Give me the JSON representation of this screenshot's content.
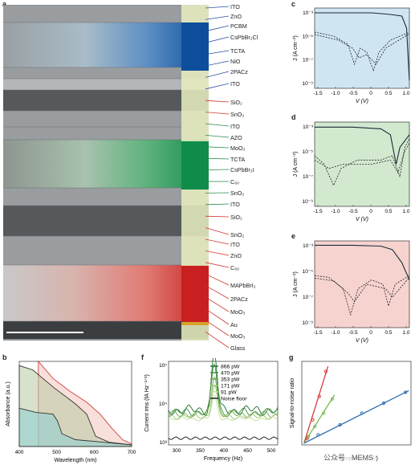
{
  "panels": {
    "a": "a",
    "b": "b",
    "c": "c",
    "d": "d",
    "e": "e",
    "f": "f",
    "g": "g"
  },
  "layers": [
    {
      "label": "ITO",
      "y": 8,
      "color": "#2a4fa0"
    },
    {
      "label": "ZnO",
      "y": 20,
      "color": "#2a4fa0"
    },
    {
      "label": "PCBM",
      "y": 32,
      "color": "#2a4fa0"
    },
    {
      "label": "CsPbBr₂Cl",
      "y": 46,
      "color": "#2a4fa0"
    },
    {
      "label": "TCTA",
      "y": 63,
      "color": "#2a4fa0"
    },
    {
      "label": "NiO",
      "y": 76,
      "color": "#2a4fa0"
    },
    {
      "label": "2PACz",
      "y": 89,
      "color": "#2a4fa0"
    },
    {
      "label": "ITO",
      "y": 104,
      "color": "#2a4fa0"
    },
    {
      "label": "SiO₂",
      "y": 127,
      "color": "#c33"
    },
    {
      "label": "SnO₂",
      "y": 142,
      "color": "#c33"
    },
    {
      "label": "ITO",
      "y": 157,
      "color": "#2a8a4a"
    },
    {
      "label": "AZO",
      "y": 171,
      "color": "#2a8a4a"
    },
    {
      "label": "MoO₃",
      "y": 184,
      "color": "#2a8a4a"
    },
    {
      "label": "TCTA",
      "y": 198,
      "color": "#2a8a4a"
    },
    {
      "label": "CsPbBr₃I",
      "y": 211,
      "color": "#2a8a4a"
    },
    {
      "label": "C₆₀",
      "y": 226,
      "color": "#2a8a4a"
    },
    {
      "label": "SnO₂",
      "y": 240,
      "color": "#2a8a4a"
    },
    {
      "label": "ITO",
      "y": 254,
      "color": "#2a8a4a"
    },
    {
      "label": "SiO₂",
      "y": 270,
      "color": "#c33"
    },
    {
      "label": "SnO₂",
      "y": 292,
      "color": "#c33"
    },
    {
      "label": "ITO",
      "y": 304,
      "color": "#c33"
    },
    {
      "label": "ZnO",
      "y": 318,
      "color": "#c33"
    },
    {
      "label": "C₆₀",
      "y": 333,
      "color": "#c33"
    },
    {
      "label": "MAPbBrI₂",
      "y": 355,
      "color": "#c33"
    },
    {
      "label": "2PACz",
      "y": 372,
      "color": "#c33"
    },
    {
      "label": "MoO₃",
      "y": 388,
      "color": "#c33"
    },
    {
      "label": "Au",
      "y": 404,
      "color": "#c33"
    },
    {
      "label": "MoO₃",
      "y": 418,
      "color": "#c33"
    },
    {
      "label": "Glass",
      "y": 433,
      "color": "#c33"
    }
  ],
  "bands": [
    {
      "top": 6,
      "h": 22,
      "kind": "gray"
    },
    {
      "top": 28,
      "h": 56,
      "kind": "blue"
    },
    {
      "top": 84,
      "h": 14,
      "kind": "gray"
    },
    {
      "top": 98,
      "h": 14,
      "kind": "gray-light"
    },
    {
      "top": 112,
      "h": 26,
      "kind": "dark"
    },
    {
      "top": 138,
      "h": 20,
      "kind": "gray"
    },
    {
      "top": 158,
      "h": 16,
      "kind": "gray"
    },
    {
      "top": 174,
      "h": 60,
      "kind": "green"
    },
    {
      "top": 234,
      "h": 22,
      "kind": "gray"
    },
    {
      "top": 256,
      "h": 38,
      "kind": "dark"
    },
    {
      "top": 294,
      "h": 36,
      "kind": "gray"
    },
    {
      "top": 330,
      "h": 70,
      "kind": "red"
    },
    {
      "top": 400,
      "h": 22,
      "kind": "dark-base"
    }
  ],
  "jv_plots": {
    "ylabel": "J (A cm⁻²)",
    "xlabel": "V (V)",
    "xticks": [
      "-1.5",
      "-1.0",
      "-0.5",
      "0",
      "0.5",
      "1.0"
    ],
    "yticks": [
      "10⁻³",
      "10⁻⁵",
      "10⁻⁷",
      "10⁻⁹"
    ]
  },
  "absorbance": {
    "ylabel": "Absorbance (a.u.)",
    "xlabel": "Wavelength (nm)",
    "xticks": [
      "400",
      "500",
      "600",
      "700"
    ]
  },
  "noise": {
    "ylabel": "Current rms (fA Hz⁻¹ᐟ²)",
    "xlabel": "Frequency (Hz)",
    "xticks": [
      "300",
      "350",
      "400",
      "450",
      "500"
    ],
    "yticks": [
      "10⁵",
      "10⁴",
      "10³"
    ],
    "legend": [
      "866 pW",
      "470 pW",
      "353 pW",
      "171 pW",
      "91 pW",
      "Noise floor"
    ]
  },
  "snr": {
    "ylabel": "Signal-to-noise ratio",
    "xlabel": "Input power (nW)"
  },
  "watermark": "公众号 · MEMS",
  "chart_data": [
    {
      "type": "line",
      "title": "",
      "xlabel": "V (V)",
      "ylabel": "J (A cm⁻²)",
      "xlim": [
        -1.5,
        1.0
      ],
      "yscale": "log",
      "series": [
        {
          "values": [
            [
              -1.5,
              0.003
            ],
            [
              -1.0,
              0.003
            ],
            [
              -0.5,
              0.003
            ],
            [
              0,
              0.003
            ],
            [
              0.5,
              0.0025
            ],
            [
              0.8,
              0.002
            ],
            [
              1.0,
              0.0001
            ]
          ]
        },
        {
          "values": [
            [
              -1.5,
              1e-05
            ],
            [
              -1.0,
              5e-06
            ],
            [
              -0.5,
              1e-06
            ],
            [
              -0.2,
              1e-07
            ],
            [
              0,
              1e-06
            ],
            [
              0.2,
              1e-07
            ],
            [
              0.5,
              1e-06
            ],
            [
              1.0,
              1e-05
            ]
          ]
        }
      ]
    },
    {
      "type": "line",
      "xlabel": "V (V)",
      "ylabel": "J (A cm⁻²)",
      "xlim": [
        -1.5,
        1.0
      ],
      "yscale": "log",
      "series": [
        {
          "values": [
            [
              -1.5,
              0.003
            ],
            [
              -1.0,
              0.003
            ],
            [
              0,
              0.003
            ],
            [
              0.5,
              0.002
            ],
            [
              0.7,
              0.0001
            ],
            [
              1.0,
              0.001
            ]
          ]
        },
        {
          "values": [
            [
              -1.5,
              1e-05
            ],
            [
              -1.0,
              1e-07
            ],
            [
              -0.5,
              5e-06
            ],
            [
              0.5,
              5e-06
            ],
            [
              0.8,
              1e-07
            ],
            [
              1.0,
              0.0001
            ]
          ]
        }
      ]
    },
    {
      "type": "line",
      "xlabel": "V (V)",
      "ylabel": "J (A cm⁻²)",
      "xlim": [
        -1.5,
        1.0
      ],
      "yscale": "log",
      "series": [
        {
          "values": [
            [
              -1.5,
              0.003
            ],
            [
              -1.0,
              0.003
            ],
            [
              0,
              0.003
            ],
            [
              0.5,
              0.002
            ],
            [
              0.8,
              0.0003
            ],
            [
              1.0,
              0.0001
            ]
          ]
        },
        {
          "values": [
            [
              -1.5,
              1e-05
            ],
            [
              -1.0,
              5e-06
            ],
            [
              -0.5,
              1e-07
            ],
            [
              0,
              5e-06
            ],
            [
              0.5,
              1e-07
            ],
            [
              1.0,
              1e-05
            ]
          ]
        }
      ]
    },
    {
      "type": "area",
      "xlabel": "Wavelength (nm)",
      "ylabel": "Absorbance (a.u.)",
      "xlim": [
        400,
        700
      ],
      "series": [
        {
          "values": [
            [
              400,
              1.0
            ],
            [
              450,
              0.9
            ],
            [
              470,
              0.85
            ],
            [
              490,
              0.2
            ],
            [
              600,
              0.05
            ],
            [
              700,
              0.02
            ]
          ]
        },
        {
          "values": [
            [
              400,
              2.4
            ],
            [
              450,
              2.0
            ],
            [
              500,
              1.6
            ],
            [
              560,
              1.2
            ],
            [
              600,
              0.5
            ],
            [
              650,
              0.2
            ],
            [
              700,
              0.1
            ]
          ]
        },
        {
          "values": [
            [
              450,
              3.0
            ],
            [
              500,
              2.6
            ],
            [
              560,
              2.0
            ],
            [
              600,
              1.6
            ],
            [
              650,
              1.0
            ],
            [
              700,
              0.4
            ]
          ]
        }
      ]
    },
    {
      "type": "line",
      "xlabel": "Frequency (Hz)",
      "ylabel": "Current rms (fA Hz⁻¹ᐟ²)",
      "xlim": [
        275,
        500
      ],
      "yscale": "log",
      "series": [
        {
          "name": "866 pW",
          "values": [
            [
              275,
              2000
            ],
            [
              350,
              4000
            ],
            [
              375,
              40000
            ],
            [
              400,
              4000
            ],
            [
              500,
              2000
            ]
          ]
        },
        {
          "name": "470 pW",
          "values": [
            [
              275,
              1800
            ],
            [
              350,
              3000
            ],
            [
              375,
              20000
            ],
            [
              400,
              3000
            ],
            [
              500,
              1500
            ]
          ]
        },
        {
          "name": "353 pW",
          "values": [
            [
              275,
              1500
            ],
            [
              350,
              2500
            ],
            [
              375,
              12000
            ],
            [
              400,
              2500
            ],
            [
              500,
              1400
            ]
          ]
        },
        {
          "name": "171 pW",
          "values": [
            [
              275,
              1300
            ],
            [
              350,
              1800
            ],
            [
              375,
              6000
            ],
            [
              400,
              1800
            ],
            [
              500,
              1200
            ]
          ]
        },
        {
          "name": "91 pW",
          "values": [
            [
              275,
              1200
            ],
            [
              350,
              1400
            ],
            [
              375,
              3000
            ],
            [
              400,
              1400
            ],
            [
              500,
              1100
            ]
          ]
        },
        {
          "name": "Noise floor",
          "values": [
            [
              275,
              1000
            ],
            [
              500,
              1000
            ]
          ]
        }
      ]
    },
    {
      "type": "scatter",
      "xlabel": "Input power (nW)",
      "ylabel": "Signal-to-noise ratio",
      "series": [
        {
          "values": [
            [
              0.05,
              10
            ],
            [
              0.1,
              40
            ],
            [
              0.2,
              90
            ],
            [
              0.3,
              140
            ]
          ]
        },
        {
          "values": [
            [
              0.05,
              8
            ],
            [
              0.1,
              30
            ],
            [
              0.2,
              70
            ],
            [
              0.3,
              110
            ]
          ]
        },
        {
          "values": [
            [
              0.1,
              10
            ],
            [
              0.5,
              30
            ],
            [
              1.0,
              60
            ],
            [
              1.5,
              90
            ],
            [
              2.0,
              120
            ]
          ]
        }
      ]
    }
  ]
}
